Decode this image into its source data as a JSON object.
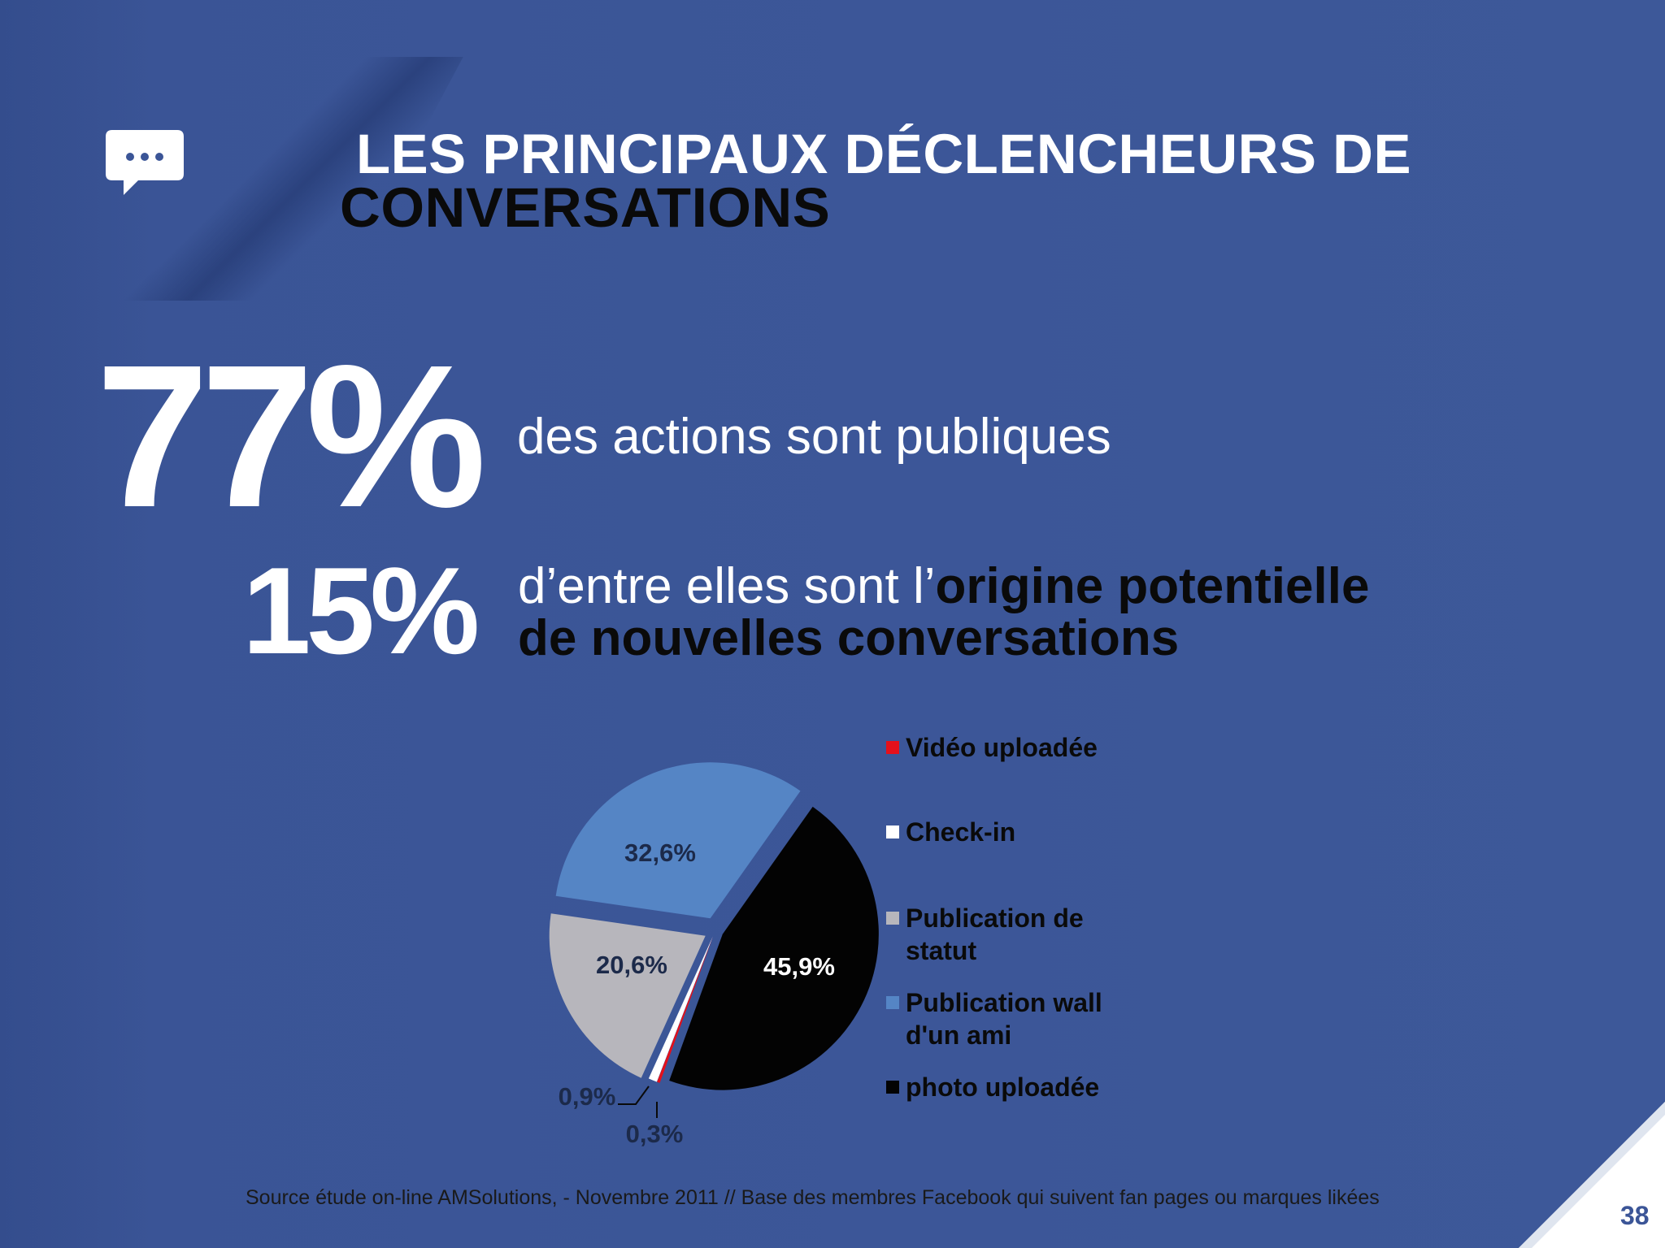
{
  "slide": {
    "title_line1": "LES PRINCIPAUX DÉCLENCHEURS DE",
    "title_line2": "CONVERSATIONS",
    "stat1": {
      "value": "77%",
      "text": "des actions sont publiques"
    },
    "stat2": {
      "value": "15%",
      "text_plain": "d’entre elles sont l’",
      "text_bold_a": "origine potentielle",
      "text_bold_b": "de nouvelles conversations"
    },
    "source": "Source étude on-line AMSolutions, - Novembre 2011 // Base des membres Facebook qui suivent fan pages ou marques likées",
    "page_number": "38",
    "icon": "chat-bubble-icon"
  },
  "colors": {
    "background": "#3b5597",
    "title_white": "#ffffff",
    "title_dark": "#0a0a0a"
  },
  "chart_data": {
    "type": "pie",
    "title": "",
    "series": [
      {
        "name": "Vidéo uploadée",
        "value": 0.3,
        "label": "0,3%",
        "color": "#e5101a"
      },
      {
        "name": "Check-in",
        "value": 0.9,
        "label": "0,9%",
        "color": "#ffffff"
      },
      {
        "name": "Publication de statut",
        "value": 20.6,
        "label": "20,6%",
        "color": "#b7b6bc"
      },
      {
        "name": "Publication wall d'un ami",
        "value": 32.6,
        "label": "32,6%",
        "color": "#5585c5"
      },
      {
        "name": "photo uploadée",
        "value": 45.9,
        "label": "45,9%",
        "color": "#030303"
      }
    ],
    "legend_position": "right"
  }
}
